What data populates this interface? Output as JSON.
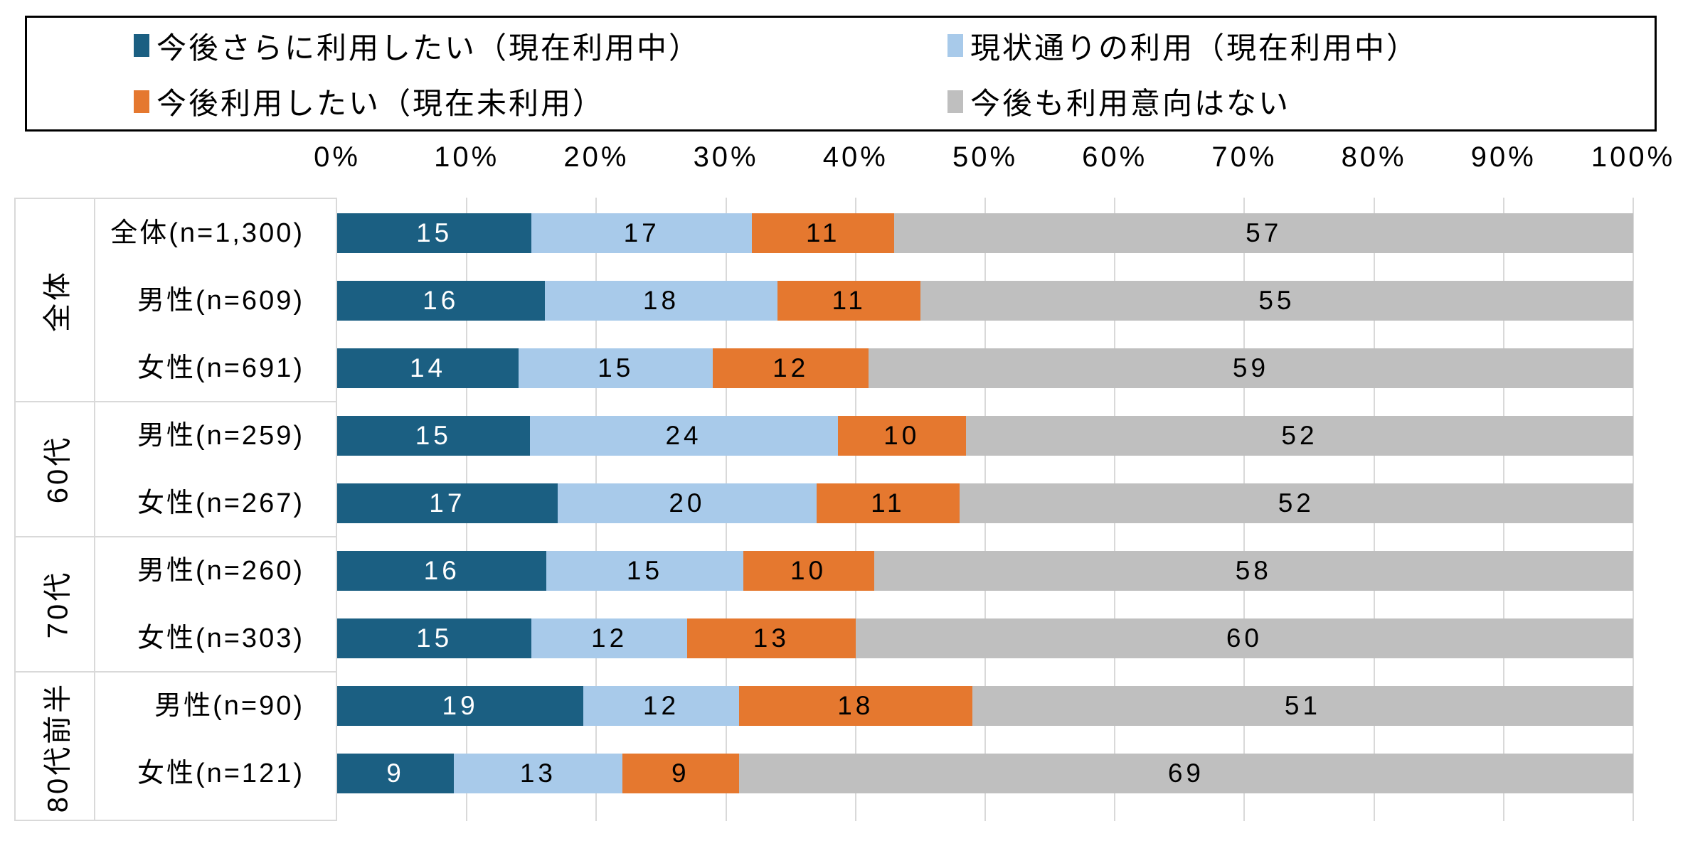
{
  "chart_data": {
    "type": "bar",
    "stacked": true,
    "orientation": "horizontal",
    "title": "",
    "xlabel": "",
    "ylabel": "",
    "xlim": [
      0,
      100
    ],
    "grid": true,
    "legend_position": "top",
    "series": [
      {
        "name": "今後さらに利用したい（現在利用中）",
        "color": "#1B5F82",
        "label_color": "#FFFFFF"
      },
      {
        "name": "現状通りの利用（現在利用中）",
        "color": "#A8CAEA",
        "label_color": "#000000"
      },
      {
        "name": "今後利用したい（現在未利用）",
        "color": "#E5782F",
        "label_color": "#000000"
      },
      {
        "name": "今後も利用意向はない",
        "color": "#BFBFBF",
        "label_color": "#000000"
      }
    ],
    "groups": [
      {
        "label": "全体",
        "rows": [
          {
            "label": "全体(n=1,300)",
            "values": [
              15,
              17,
              11,
              57
            ]
          },
          {
            "label": "男性(n=609)",
            "values": [
              16,
              18,
              11,
              55
            ]
          },
          {
            "label": "女性(n=691)",
            "values": [
              14,
              15,
              12,
              59
            ]
          }
        ]
      },
      {
        "label": "60代",
        "rows": [
          {
            "label": "男性(n=259)",
            "values": [
              15,
              24,
              10,
              52
            ]
          },
          {
            "label": "女性(n=267)",
            "values": [
              17,
              20,
              11,
              52
            ]
          }
        ]
      },
      {
        "label": "70代",
        "rows": [
          {
            "label": "男性(n=260)",
            "values": [
              16,
              15,
              10,
              58
            ]
          },
          {
            "label": "女性(n=303)",
            "values": [
              15,
              12,
              13,
              60
            ]
          }
        ]
      },
      {
        "label": "80代前半",
        "rows": [
          {
            "label": "男性(n=90)",
            "values": [
              19,
              12,
              18,
              51
            ]
          },
          {
            "label": "女性(n=121)",
            "values": [
              9,
              13,
              9,
              69
            ]
          }
        ]
      }
    ],
    "x_ticks": [
      "0%",
      "10%",
      "20%",
      "30%",
      "40%",
      "50%",
      "60%",
      "70%",
      "80%",
      "90%",
      "100%"
    ]
  },
  "colors": {
    "gridline": "#D9D9D9",
    "panel_border": "#D9D9D9",
    "legend_border": "#000000",
    "background": "#FFFFFF"
  }
}
